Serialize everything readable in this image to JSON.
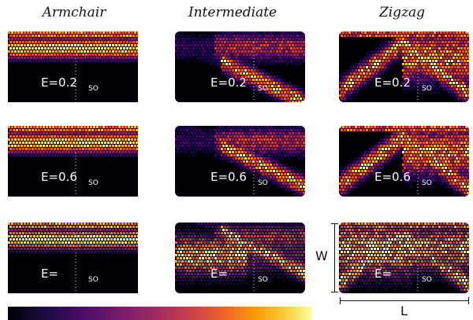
{
  "columns": [
    "Armchair",
    "Intermediate",
    "Zigzag"
  ],
  "panels": [
    {
      "energy": "E=0.2",
      "sub": "SO",
      "variant": "armchair"
    },
    {
      "energy": "E=0.2",
      "sub": "SO",
      "variant": "intermediate"
    },
    {
      "energy": "E=0.2",
      "sub": "SO",
      "variant": "zigzag"
    },
    {
      "energy": "E=0.6",
      "sub": "SO",
      "variant": "armchair"
    },
    {
      "energy": "E=0.6",
      "sub": "SO",
      "variant": "intermediate"
    },
    {
      "energy": "E=0.6",
      "sub": "SO",
      "variant": "zigzag"
    },
    {
      "energy": "E=",
      "sub": "SO",
      "variant": "armchair"
    },
    {
      "energy": "E=",
      "sub": "SO",
      "variant": "intermediate"
    },
    {
      "energy": "E=",
      "sub": "SO",
      "variant": "zigzag"
    }
  ],
  "dimensions": {
    "width_label": "W",
    "length_label": "L"
  },
  "colorbar": {
    "colormap": "inferno"
  }
}
